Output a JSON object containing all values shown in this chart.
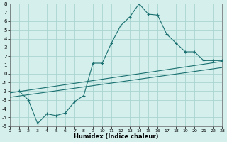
{
  "xlabel": "Humidex (Indice chaleur)",
  "background_color": "#d4efec",
  "grid_color": "#aad4d0",
  "line_color": "#1a7070",
  "xlim": [
    0,
    23
  ],
  "ylim": [
    -6,
    8
  ],
  "xticks": [
    0,
    1,
    2,
    3,
    4,
    5,
    6,
    7,
    8,
    9,
    10,
    11,
    12,
    13,
    14,
    15,
    16,
    17,
    18,
    19,
    20,
    21,
    22,
    23
  ],
  "yticks": [
    -6,
    -5,
    -4,
    -3,
    -2,
    -1,
    0,
    1,
    2,
    3,
    4,
    5,
    6,
    7,
    8
  ],
  "series1_x": [
    1,
    2,
    3,
    4,
    5,
    6,
    7,
    8,
    9,
    10,
    11,
    12,
    13,
    14,
    15,
    16,
    17,
    18,
    19,
    20,
    21,
    22,
    23
  ],
  "series1_y": [
    -2.0,
    -3.0,
    -5.7,
    -4.6,
    -4.8,
    -4.5,
    -3.2,
    -2.5,
    1.2,
    1.2,
    3.5,
    5.5,
    6.5,
    8.0,
    6.8,
    6.7,
    4.5,
    3.5,
    2.5,
    2.5,
    1.5,
    1.5,
    1.5
  ],
  "trend1_x": [
    0,
    23
  ],
  "trend1_y": [
    -2.2,
    1.4
  ],
  "trend2_x": [
    0,
    23
  ],
  "trend2_y": [
    -2.7,
    0.7
  ],
  "xlabel_fontsize": 6,
  "xlabel_fontweight": "bold",
  "tick_fontsize_x": 4.5,
  "tick_fontsize_y": 5.0,
  "linewidth": 0.8,
  "markersize": 3.0
}
